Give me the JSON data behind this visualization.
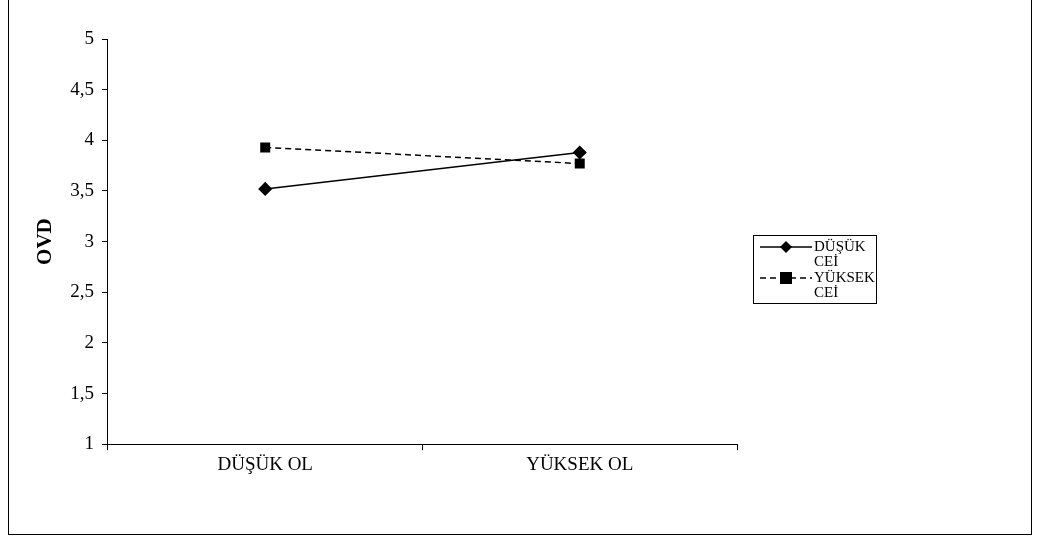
{
  "chart_data": {
    "type": "line",
    "ylabel": "OVD",
    "categories": [
      "DÜŞÜK OL",
      "YÜKSEK OL"
    ],
    "series": [
      {
        "name": "DÜŞÜK CEİ",
        "color": "#000000",
        "values": [
          3.52,
          3.88
        ],
        "marker": "diamond",
        "line_style": "solid"
      },
      {
        "name": "YÜKSEK CEİ",
        "color": "#000000",
        "values": [
          3.93,
          3.77
        ],
        "marker": "square",
        "line_style": "dashed"
      }
    ],
    "ylim": [
      1,
      5
    ],
    "yticks": [
      1,
      {
        "value": 1.5,
        "label": "1,5"
      },
      2,
      {
        "value": 2.5,
        "label": "2,5"
      },
      3,
      {
        "value": 3.5,
        "label": "3,5"
      },
      4,
      {
        "value": 4.5,
        "label": "4,5"
      },
      5
    ],
    "grid": false,
    "legend": "right"
  }
}
